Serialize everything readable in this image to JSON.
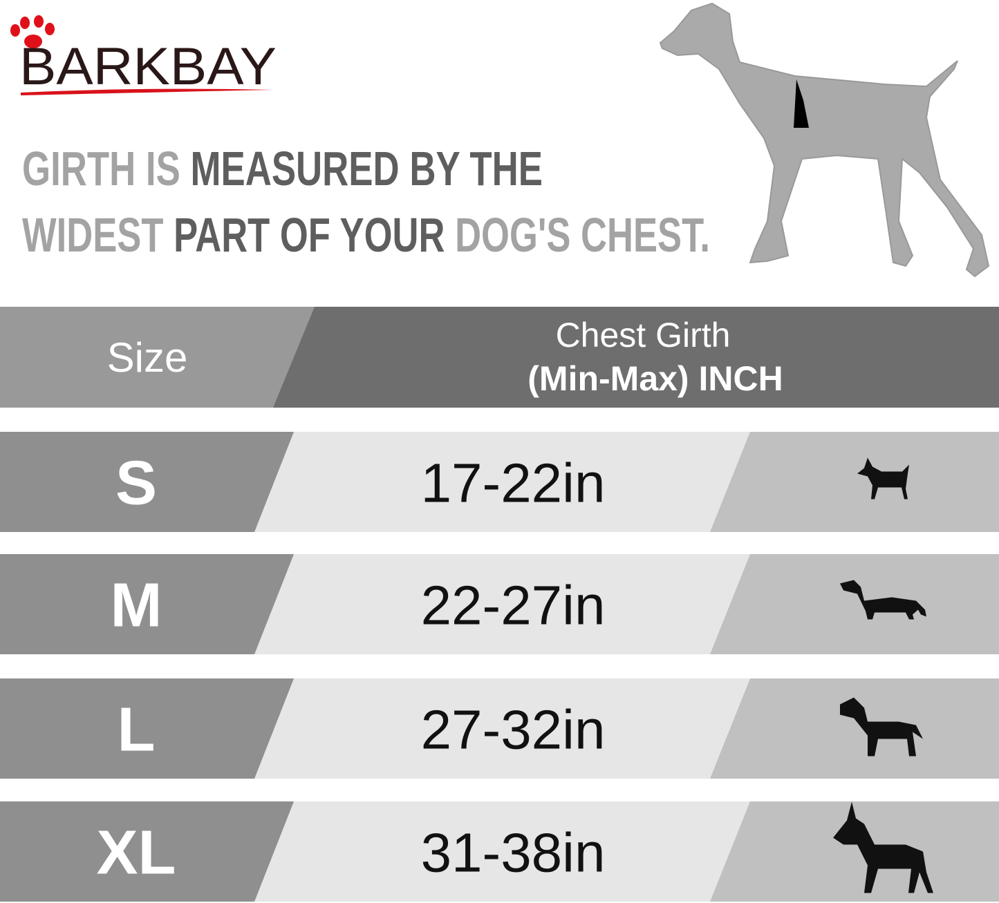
{
  "brand": "BARKBAY",
  "headline": [
    [
      "GIRTH IS ",
      "MEASURED BY THE"
    ],
    [
      "WIDEST ",
      "PART OF YOUR ",
      "DOG'S CHEST."
    ]
  ],
  "table": {
    "header": [
      "Size",
      "Chest Girth",
      "(Min-Max)  INCH"
    ],
    "rows": [
      [
        "S",
        "17-22in"
      ],
      [
        "M",
        "22-27in"
      ],
      [
        "L",
        "27-32in"
      ],
      [
        "XL",
        "31-38in"
      ]
    ]
  }
}
